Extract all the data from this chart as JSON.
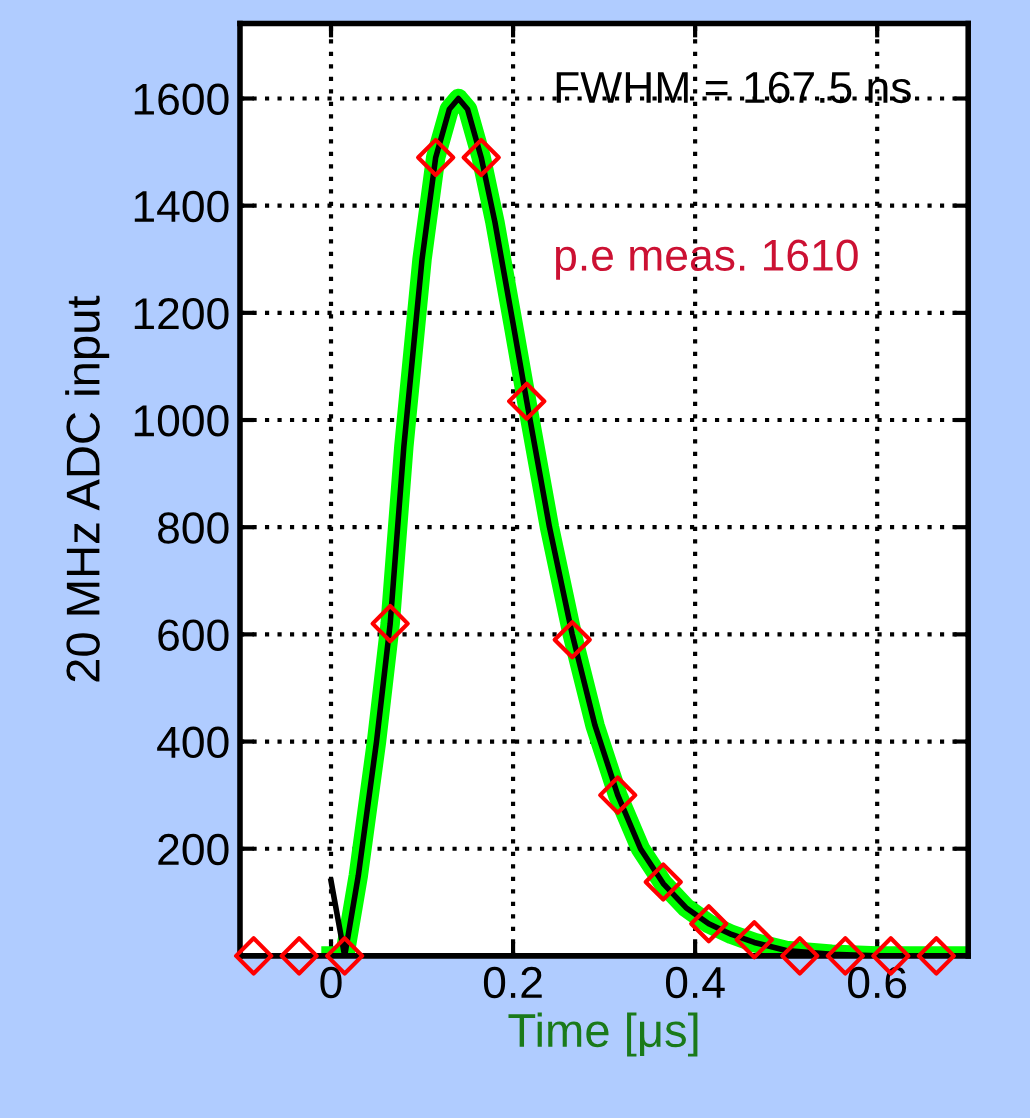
{
  "chart_data": {
    "type": "line",
    "xlabel": "Time [μs]",
    "ylabel": "20 MHz ADC input",
    "xlim": [
      -0.1,
      0.7
    ],
    "xticks": [
      0,
      0.2,
      0.4,
      0.6
    ],
    "ylim": [
      0,
      1740
    ],
    "yticks": [
      200,
      400,
      600,
      800,
      1000,
      1200,
      1400,
      1600
    ],
    "grid": true,
    "legend": false,
    "annotations": [
      "FWHM = 167.5 ns",
      "p.e meas. 1610"
    ],
    "series": [
      {
        "color": "#00ff00",
        "marker": "none",
        "line_style": "solid",
        "x": [
          0,
          0.015,
          0.03,
          0.05,
          0.065,
          0.08,
          0.1,
          0.115,
          0.13,
          0.14,
          0.15,
          0.165,
          0.18,
          0.2,
          0.215,
          0.24,
          0.265,
          0.29,
          0.315,
          0.34,
          0.365,
          0.39,
          0.415,
          0.44,
          0.465,
          0.5,
          0.55,
          0.6,
          0.7
        ],
        "values": [
          0,
          0,
          150,
          400,
          620,
          950,
          1300,
          1490,
          1580,
          1600,
          1580,
          1490,
          1370,
          1180,
          1035,
          800,
          600,
          430,
          300,
          200,
          135,
          90,
          60,
          40,
          25,
          10,
          3,
          0,
          0
        ]
      },
      {
        "color": "#000000",
        "marker": "none",
        "line_style": "solid",
        "x": [
          0,
          0.015,
          0.03,
          0.05,
          0.065,
          0.08,
          0.1,
          0.115,
          0.13,
          0.14,
          0.15,
          0.165,
          0.18,
          0.2,
          0.215,
          0.24,
          0.265,
          0.29,
          0.315,
          0.34,
          0.365,
          0.39,
          0.415,
          0.44,
          0.465,
          0.5,
          0.55,
          0.6,
          0.7
        ],
        "values": [
          140,
          0,
          150,
          400,
          620,
          950,
          1300,
          1490,
          1580,
          1600,
          1580,
          1490,
          1370,
          1180,
          1035,
          800,
          600,
          430,
          300,
          200,
          135,
          90,
          60,
          40,
          25,
          10,
          3,
          0,
          0
        ]
      },
      {
        "type": "scatter",
        "color": "#ff0000",
        "marker": "diamond",
        "x": [
          -0.085,
          -0.035,
          0.015,
          0.065,
          0.115,
          0.165,
          0.215,
          0.265,
          0.315,
          0.365,
          0.415,
          0.465,
          0.515,
          0.565,
          0.615,
          0.665
        ],
        "values": [
          0,
          0,
          0,
          620,
          1490,
          1490,
          1035,
          590,
          300,
          138,
          60,
          30,
          0,
          0,
          0,
          0
        ]
      }
    ]
  }
}
